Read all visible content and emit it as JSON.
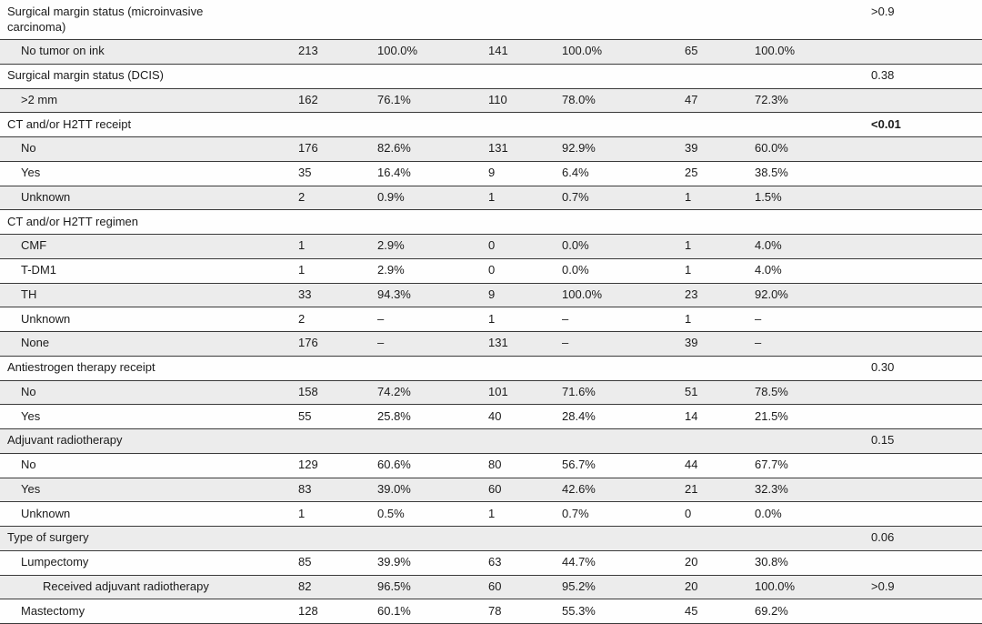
{
  "table": {
    "description": "Clinical characteristics summary table continuation with three cohort columns (n, %) and p-values",
    "colors": {
      "shaded_row_bg": "#ececec",
      "rule": "#3a3a3a",
      "text": "#1b1b1b"
    },
    "dash": "–",
    "rows": [
      {
        "label": "Surgical margin status (microinvasive carcinoma)",
        "indent": 0,
        "n1": "",
        "pct1": "",
        "n2": "",
        "pct2": "",
        "n3": "",
        "pct3": "",
        "p": ">0.9",
        "p_bold": false,
        "tall": true
      },
      {
        "label": "No tumor on ink",
        "indent": 1,
        "n1": "213",
        "pct1": "100.0%",
        "n2": "141",
        "pct2": "100.0%",
        "n3": "65",
        "pct3": "100.0%",
        "p": "",
        "p_bold": false,
        "tall": false
      },
      {
        "label": "Surgical margin status (DCIS)",
        "indent": 0,
        "n1": "",
        "pct1": "",
        "n2": "",
        "pct2": "",
        "n3": "",
        "pct3": "",
        "p": "0.38",
        "p_bold": false,
        "tall": false
      },
      {
        "label": ">2 mm",
        "indent": 1,
        "n1": "162",
        "pct1": "76.1%",
        "n2": "110",
        "pct2": "78.0%",
        "n3": "47",
        "pct3": "72.3%",
        "p": "",
        "p_bold": false,
        "tall": false
      },
      {
        "label": "CT and/or H2TT receipt",
        "indent": 0,
        "n1": "",
        "pct1": "",
        "n2": "",
        "pct2": "",
        "n3": "",
        "pct3": "",
        "p": "<0.01",
        "p_bold": true,
        "tall": false
      },
      {
        "label": "No",
        "indent": 1,
        "n1": "176",
        "pct1": "82.6%",
        "n2": "131",
        "pct2": "92.9%",
        "n3": "39",
        "pct3": "60.0%",
        "p": "",
        "p_bold": false,
        "tall": false
      },
      {
        "label": "Yes",
        "indent": 1,
        "n1": "35",
        "pct1": "16.4%",
        "n2": "9",
        "pct2": "6.4%",
        "n3": "25",
        "pct3": "38.5%",
        "p": "",
        "p_bold": false,
        "tall": false
      },
      {
        "label": "Unknown",
        "indent": 1,
        "n1": "2",
        "pct1": "0.9%",
        "n2": "1",
        "pct2": "0.7%",
        "n3": "1",
        "pct3": "1.5%",
        "p": "",
        "p_bold": false,
        "tall": false
      },
      {
        "label": "CT and/or H2TT regimen",
        "indent": 0,
        "n1": "",
        "pct1": "",
        "n2": "",
        "pct2": "",
        "n3": "",
        "pct3": "",
        "p": "",
        "p_bold": false,
        "tall": false
      },
      {
        "label": "CMF",
        "indent": 1,
        "n1": "1",
        "pct1": "2.9%",
        "n2": "0",
        "pct2": "0.0%",
        "n3": "1",
        "pct3": "4.0%",
        "p": "",
        "p_bold": false,
        "tall": false
      },
      {
        "label": "T-DM1",
        "indent": 1,
        "n1": "1",
        "pct1": "2.9%",
        "n2": "0",
        "pct2": "0.0%",
        "n3": "1",
        "pct3": "4.0%",
        "p": "",
        "p_bold": false,
        "tall": false
      },
      {
        "label": "TH",
        "indent": 1,
        "n1": "33",
        "pct1": "94.3%",
        "n2": "9",
        "pct2": "100.0%",
        "n3": "23",
        "pct3": "92.0%",
        "p": "",
        "p_bold": false,
        "tall": false
      },
      {
        "label": "Unknown",
        "indent": 1,
        "n1": "2",
        "pct1": "–",
        "n2": "1",
        "pct2": "–",
        "n3": "1",
        "pct3": "–",
        "p": "",
        "p_bold": false,
        "tall": false
      },
      {
        "label": "None",
        "indent": 1,
        "n1": "176",
        "pct1": "–",
        "n2": "131",
        "pct2": "–",
        "n3": "39",
        "pct3": "–",
        "p": "",
        "p_bold": false,
        "tall": false
      },
      {
        "label": "Antiestrogen therapy receipt",
        "indent": 0,
        "n1": "",
        "pct1": "",
        "n2": "",
        "pct2": "",
        "n3": "",
        "pct3": "",
        "p": "0.30",
        "p_bold": false,
        "tall": false
      },
      {
        "label": "No",
        "indent": 1,
        "n1": "158",
        "pct1": "74.2%",
        "n2": "101",
        "pct2": "71.6%",
        "n3": "51",
        "pct3": "78.5%",
        "p": "",
        "p_bold": false,
        "tall": false
      },
      {
        "label": "Yes",
        "indent": 1,
        "n1": "55",
        "pct1": "25.8%",
        "n2": "40",
        "pct2": "28.4%",
        "n3": "14",
        "pct3": "21.5%",
        "p": "",
        "p_bold": false,
        "tall": false
      },
      {
        "label": "Adjuvant radiotherapy",
        "indent": 0,
        "n1": "",
        "pct1": "",
        "n2": "",
        "pct2": "",
        "n3": "",
        "pct3": "",
        "p": "0.15",
        "p_bold": false,
        "tall": false
      },
      {
        "label": "No",
        "indent": 1,
        "n1": "129",
        "pct1": "60.6%",
        "n2": "80",
        "pct2": "56.7%",
        "n3": "44",
        "pct3": "67.7%",
        "p": "",
        "p_bold": false,
        "tall": false
      },
      {
        "label": "Yes",
        "indent": 1,
        "n1": "83",
        "pct1": "39.0%",
        "n2": "60",
        "pct2": "42.6%",
        "n3": "21",
        "pct3": "32.3%",
        "p": "",
        "p_bold": false,
        "tall": false
      },
      {
        "label": "Unknown",
        "indent": 1,
        "n1": "1",
        "pct1": "0.5%",
        "n2": "1",
        "pct2": "0.7%",
        "n3": "0",
        "pct3": "0.0%",
        "p": "",
        "p_bold": false,
        "tall": false
      },
      {
        "label": "Type of surgery",
        "indent": 0,
        "n1": "",
        "pct1": "",
        "n2": "",
        "pct2": "",
        "n3": "",
        "pct3": "",
        "p": "0.06",
        "p_bold": false,
        "tall": false
      },
      {
        "label": "Lumpectomy",
        "indent": 1,
        "n1": "85",
        "pct1": "39.9%",
        "n2": "63",
        "pct2": "44.7%",
        "n3": "20",
        "pct3": "30.8%",
        "p": "",
        "p_bold": false,
        "tall": false
      },
      {
        "label": "Received adjuvant radiotherapy",
        "indent": 2,
        "n1": "82",
        "pct1": "96.5%",
        "n2": "60",
        "pct2": "95.2%",
        "n3": "20",
        "pct3": "100.0%",
        "p": ">0.9",
        "p_bold": false,
        "tall": false
      },
      {
        "label": "Mastectomy",
        "indent": 1,
        "n1": "128",
        "pct1": "60.1%",
        "n2": "78",
        "pct2": "55.3%",
        "n3": "45",
        "pct3": "69.2%",
        "p": "",
        "p_bold": false,
        "tall": false
      }
    ]
  }
}
